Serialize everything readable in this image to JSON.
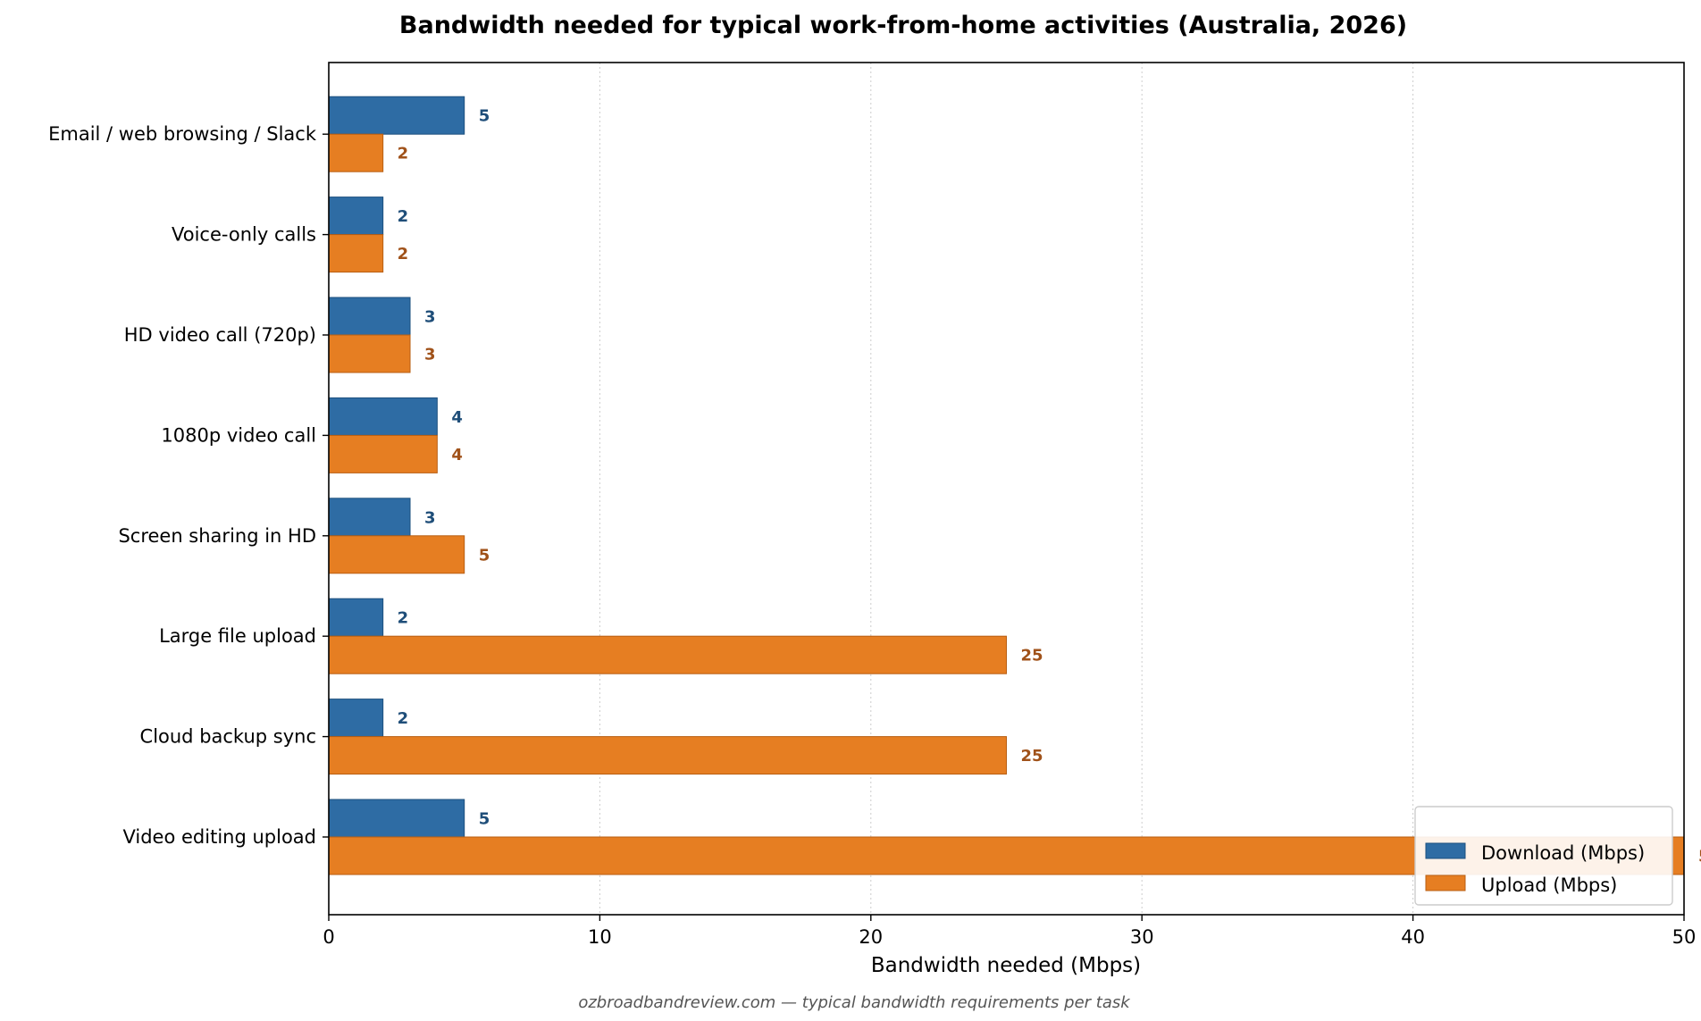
{
  "colors": {
    "download": "#2e6ca4",
    "download_edge": "#1c4f7e",
    "download_label": "#1f4e79",
    "upload": "#e67e22",
    "upload_edge": "#b85e12",
    "upload_label": "#a0521a"
  },
  "footer": "ozbroadbandreview.com — typical bandwidth requirements per task",
  "chart_data": {
    "type": "bar",
    "orientation": "horizontal",
    "title": "Bandwidth needed for typical work-from-home activities (Australia, 2026)",
    "xlabel": "Bandwidth needed (Mbps)",
    "ylabel": "",
    "xlim": [
      0,
      50
    ],
    "xticks": [
      0,
      10,
      20,
      30,
      40,
      50
    ],
    "grid": "x-dotted",
    "legend_position": "bottom-right",
    "categories": [
      "Email / web browsing / Slack",
      "Voice-only calls",
      "HD video call (720p)",
      "1080p video call",
      "Screen sharing in HD",
      "Large file upload",
      "Cloud backup sync",
      "Video editing upload"
    ],
    "series": [
      {
        "name": "Download (Mbps)",
        "values": [
          5,
          2,
          3,
          4,
          3,
          2,
          2,
          5
        ]
      },
      {
        "name": "Upload (Mbps)",
        "values": [
          2,
          2,
          3,
          4,
          5,
          25,
          25,
          50
        ]
      }
    ]
  }
}
